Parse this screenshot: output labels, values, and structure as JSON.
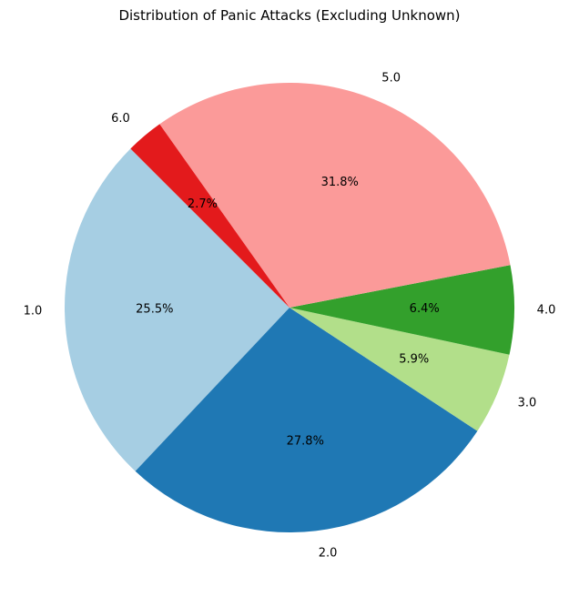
{
  "chart_data": {
    "type": "pie",
    "title": "Distribution of Panic Attacks (Excluding Unknown)",
    "start_angle_deg": 135,
    "direction": "counterclockwise",
    "slices": [
      {
        "label": "1.0",
        "pct": 25.5,
        "pct_label": "25.5%",
        "color": "#a6cee3"
      },
      {
        "label": "2.0",
        "pct": 27.8,
        "pct_label": "27.8%",
        "color": "#1f78b4"
      },
      {
        "label": "3.0",
        "pct": 5.9,
        "pct_label": "5.9%",
        "color": "#b2df8a"
      },
      {
        "label": "4.0",
        "pct": 6.4,
        "pct_label": "6.4%",
        "color": "#33a02c"
      },
      {
        "label": "5.0",
        "pct": 31.8,
        "pct_label": "31.8%",
        "color": "#fb9a99"
      },
      {
        "label": "6.0",
        "pct": 2.7,
        "pct_label": "2.7%",
        "color": "#e31a1c"
      }
    ]
  }
}
